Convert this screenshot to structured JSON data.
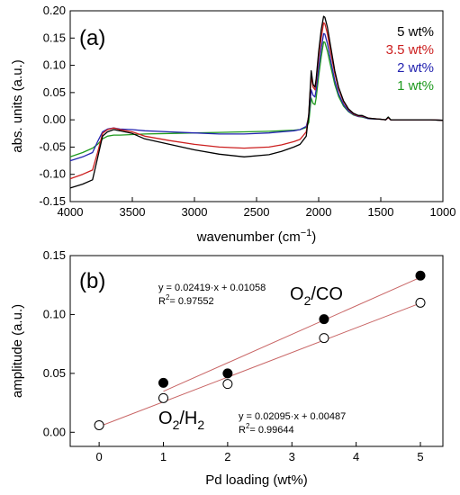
{
  "chart_data": [
    {
      "panel": "(a)",
      "type": "line",
      "xlabel": "wavenumber (cm",
      "xlabel_sup": "−1",
      "xlabel_tail": ")",
      "ylabel": "abs. units (a.u.)",
      "xlim": [
        4000,
        1000
      ],
      "ylim": [
        -0.15,
        0.2
      ],
      "x_ticks": [
        4000,
        3500,
        3000,
        2500,
        2000,
        1500,
        1000
      ],
      "y_ticks": [
        -0.15,
        -0.1,
        -0.05,
        0.0,
        0.05,
        0.1,
        0.15,
        0.2
      ],
      "x_tick_labels": [
        "4000",
        "3500",
        "3000",
        "2500",
        "2000",
        "1500",
        "1000"
      ],
      "y_tick_labels": [
        "-0.15",
        "-0.10",
        "-0.05",
        "0.00",
        "0.05",
        "0.10",
        "0.15",
        "0.20"
      ],
      "legend_position": "top-right",
      "series": [
        {
          "name": "5 wt%",
          "color": "#000000",
          "x": [
            4000,
            3900,
            3820,
            3780,
            3740,
            3700,
            3650,
            3600,
            3500,
            3400,
            3200,
            3000,
            2800,
            2600,
            2400,
            2300,
            2200,
            2150,
            2100,
            2080,
            2060,
            2045,
            2030,
            2020,
            2000,
            1980,
            1960,
            1950,
            1930,
            1900,
            1870,
            1840,
            1800,
            1760,
            1720,
            1680,
            1650,
            1600,
            1500,
            1460,
            1440,
            1420,
            1380,
            1300,
            1200,
            1100,
            1000
          ],
          "y": [
            -0.125,
            -0.118,
            -0.11,
            -0.07,
            -0.03,
            -0.022,
            -0.018,
            -0.02,
            -0.025,
            -0.035,
            -0.045,
            -0.055,
            -0.063,
            -0.068,
            -0.064,
            -0.058,
            -0.05,
            -0.045,
            -0.03,
            0.01,
            0.09,
            0.065,
            0.06,
            0.075,
            0.125,
            0.165,
            0.19,
            0.188,
            0.17,
            0.13,
            0.09,
            0.06,
            0.035,
            0.02,
            0.012,
            0.008,
            0.008,
            0.003,
            0.001,
            0.0,
            0.005,
            0.0,
            0.0,
            0.0,
            0.0,
            0.0,
            -0.001
          ]
        },
        {
          "name": "3.5 wt%",
          "color": "#cc1f1f",
          "x": [
            4000,
            3900,
            3820,
            3780,
            3740,
            3700,
            3650,
            3600,
            3500,
            3400,
            3200,
            3000,
            2800,
            2600,
            2400,
            2300,
            2200,
            2150,
            2100,
            2080,
            2060,
            2045,
            2030,
            2020,
            2000,
            1980,
            1960,
            1950,
            1930,
            1900,
            1870,
            1840,
            1800,
            1760,
            1720,
            1680,
            1650,
            1600,
            1500,
            1460,
            1440,
            1420,
            1380,
            1300,
            1200,
            1100,
            1000
          ],
          "y": [
            -0.108,
            -0.1,
            -0.092,
            -0.06,
            -0.025,
            -0.018,
            -0.015,
            -0.018,
            -0.022,
            -0.03,
            -0.038,
            -0.045,
            -0.05,
            -0.052,
            -0.05,
            -0.046,
            -0.04,
            -0.036,
            -0.022,
            0.01,
            0.08,
            0.06,
            0.055,
            0.07,
            0.115,
            0.15,
            0.178,
            0.176,
            0.158,
            0.12,
            0.085,
            0.057,
            0.033,
            0.019,
            0.011,
            0.007,
            0.007,
            0.003,
            0.001,
            0.0,
            0.004,
            0.0,
            0.0,
            0.0,
            0.0,
            0.0,
            -0.001
          ]
        },
        {
          "name": "2 wt%",
          "color": "#2424b0",
          "x": [
            4000,
            3900,
            3820,
            3780,
            3740,
            3700,
            3650,
            3600,
            3500,
            3400,
            3200,
            3000,
            2800,
            2600,
            2400,
            2300,
            2200,
            2150,
            2100,
            2080,
            2060,
            2045,
            2030,
            2020,
            2000,
            1980,
            1960,
            1950,
            1930,
            1900,
            1870,
            1840,
            1800,
            1760,
            1720,
            1680,
            1650,
            1600,
            1500,
            1460,
            1440,
            1420,
            1380,
            1300,
            1200,
            1100,
            1000
          ],
          "y": [
            -0.075,
            -0.068,
            -0.06,
            -0.04,
            -0.022,
            -0.017,
            -0.015,
            -0.017,
            -0.018,
            -0.02,
            -0.022,
            -0.024,
            -0.026,
            -0.026,
            -0.024,
            -0.022,
            -0.02,
            -0.018,
            -0.012,
            0.005,
            0.055,
            0.045,
            0.042,
            0.055,
            0.095,
            0.13,
            0.158,
            0.157,
            0.14,
            0.105,
            0.072,
            0.048,
            0.028,
            0.016,
            0.01,
            0.006,
            0.006,
            0.002,
            0.001,
            0.0,
            0.004,
            0.0,
            0.0,
            0.0,
            0.0,
            0.0,
            -0.001
          ]
        },
        {
          "name": "1 wt%",
          "color": "#1f9a1f",
          "x": [
            4000,
            3900,
            3820,
            3780,
            3740,
            3700,
            3650,
            3600,
            3500,
            3400,
            3200,
            3000,
            2800,
            2600,
            2400,
            2300,
            2200,
            2150,
            2100,
            2080,
            2060,
            2045,
            2030,
            2020,
            2000,
            1980,
            1960,
            1950,
            1930,
            1900,
            1870,
            1840,
            1800,
            1760,
            1720,
            1680,
            1650,
            1600,
            1500,
            1460,
            1440,
            1420,
            1380,
            1300,
            1200,
            1100,
            1000
          ],
          "y": [
            -0.068,
            -0.06,
            -0.052,
            -0.045,
            -0.035,
            -0.03,
            -0.028,
            -0.028,
            -0.027,
            -0.026,
            -0.025,
            -0.024,
            -0.023,
            -0.022,
            -0.021,
            -0.02,
            -0.019,
            -0.018,
            -0.014,
            -0.005,
            0.04,
            0.03,
            0.028,
            0.04,
            0.08,
            0.115,
            0.143,
            0.142,
            0.126,
            0.095,
            0.065,
            0.043,
            0.025,
            0.015,
            0.009,
            0.006,
            0.005,
            0.002,
            0.001,
            0.0,
            0.005,
            0.0,
            0.0,
            0.0,
            0.0,
            0.0,
            -0.001
          ]
        }
      ]
    },
    {
      "panel": "(b)",
      "type": "scatter",
      "xlabel": "Pd loading (wt%)",
      "ylabel": "amplitude (a.u.)",
      "xlim": [
        -0.45,
        5.35
      ],
      "ylim": [
        -0.012,
        0.15
      ],
      "x_ticks": [
        0,
        1,
        2,
        3,
        4,
        5
      ],
      "y_ticks": [
        0.0,
        0.05,
        0.1,
        0.15
      ],
      "x_tick_labels": [
        "0",
        "1",
        "2",
        "3",
        "4",
        "5"
      ],
      "y_tick_labels": [
        "0.00",
        "0.05",
        "0.10",
        "0.15"
      ],
      "series": [
        {
          "name": "O2/CO",
          "marker": "filled-circle",
          "color": "#000000",
          "x": [
            1,
            2,
            3.5,
            5
          ],
          "y": [
            0.042,
            0.05,
            0.096,
            0.133
          ],
          "fit": {
            "slope": 0.02419,
            "intercept": 0.01058,
            "x_range": [
              1,
              5
            ],
            "color": "#c86464"
          }
        },
        {
          "name": "O2/H2",
          "marker": "open-circle",
          "color": "#000000",
          "x": [
            0,
            1,
            2,
            3.5,
            5
          ],
          "y": [
            0.006,
            0.029,
            0.041,
            0.08,
            0.11
          ],
          "fit": {
            "slope": 0.02095,
            "intercept": 0.00487,
            "x_range": [
              0,
              5
            ],
            "color": "#c86464"
          }
        }
      ],
      "annotations": {
        "co_eq": "y = 0.02419·x + 0.01058",
        "co_r2_base": "R",
        "co_r2_sup": "2",
        "co_r2_value": "= 0.97552",
        "co_label_base1": "O",
        "co_label_sub": "2",
        "co_label_base2": "/CO",
        "h2_eq": "y = 0.02095·x + 0.00487",
        "h2_r2_base": "R",
        "h2_r2_sup": "2",
        "h2_r2_value": "= 0.99644",
        "h2_label_base1": "O",
        "h2_label_sub1": "2",
        "h2_label_base2": "/H",
        "h2_label_sub2": "2"
      }
    }
  ]
}
